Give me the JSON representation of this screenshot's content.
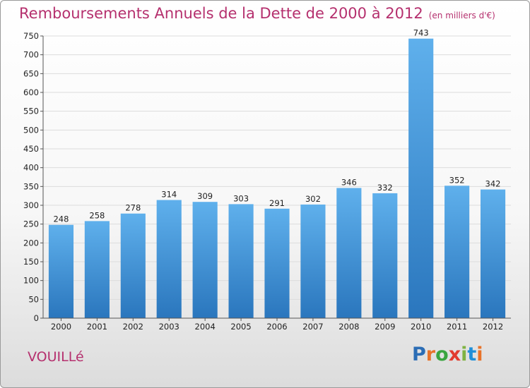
{
  "chart_data": {
    "type": "bar",
    "title": "Remboursements Annuels de la Dette de 2000 à 2012",
    "unit": "(en milliers d'€)",
    "categories": [
      "2000",
      "2001",
      "2002",
      "2003",
      "2004",
      "2005",
      "2006",
      "2007",
      "2008",
      "2009",
      "2010",
      "2011",
      "2012"
    ],
    "values": [
      248,
      258,
      278,
      314,
      309,
      303,
      291,
      302,
      346,
      332,
      743,
      352,
      342
    ],
    "ylim": [
      0,
      750
    ],
    "yticks": [
      0,
      50,
      100,
      150,
      200,
      250,
      300,
      350,
      400,
      450,
      500,
      550,
      600,
      650,
      700,
      750
    ],
    "grid": true,
    "bar_color": "#3d8fd6"
  },
  "location": "VOUILLé",
  "brand": {
    "text": "Proxiti",
    "letters": [
      "P",
      "r",
      "o",
      "x",
      "i",
      "t",
      "i"
    ],
    "colors": [
      "#2b6db5",
      "#e8732a",
      "#3aa540",
      "#e23b2e",
      "#7fb342",
      "#1f8fd8",
      "#e8732a"
    ]
  }
}
